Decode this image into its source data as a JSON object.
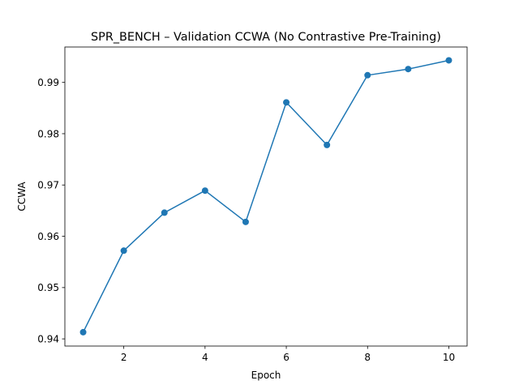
{
  "chart_data": {
    "type": "line",
    "title": "SPR_BENCH – Validation CCWA (No Contrastive Pre-Training)",
    "xlabel": "Epoch",
    "ylabel": "CCWA",
    "xlim": [
      0.55,
      10.45
    ],
    "ylim": [
      0.9386,
      0.9969
    ],
    "x_ticks": [
      2,
      4,
      6,
      8,
      10
    ],
    "y_ticks": [
      0.94,
      0.95,
      0.96,
      0.97,
      0.98,
      0.99
    ],
    "grid": false,
    "series": [
      {
        "color": "#1f77b4",
        "marker": "circle",
        "x": [
          1,
          2,
          3,
          4,
          5,
          6,
          7,
          8,
          9,
          10
        ],
        "y": [
          0.9413,
          0.9572,
          0.9646,
          0.9689,
          0.9628,
          0.9861,
          0.9778,
          0.9914,
          0.9926,
          0.9943
        ]
      }
    ]
  }
}
